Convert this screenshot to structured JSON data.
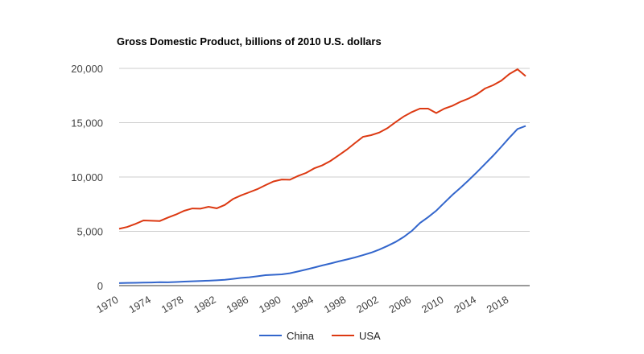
{
  "chart_data": {
    "type": "line",
    "title": "Gross Domestic Product, billions of 2010 U.S. dollars",
    "x": [
      1970,
      1971,
      1972,
      1973,
      1974,
      1975,
      1976,
      1977,
      1978,
      1979,
      1980,
      1981,
      1982,
      1983,
      1984,
      1985,
      1986,
      1987,
      1988,
      1989,
      1990,
      1991,
      1992,
      1993,
      1994,
      1995,
      1996,
      1997,
      1998,
      1999,
      2000,
      2001,
      2002,
      2003,
      2004,
      2005,
      2006,
      2007,
      2008,
      2009,
      2010,
      2011,
      2012,
      2013,
      2014,
      2015,
      2016,
      2017,
      2018,
      2019,
      2020
    ],
    "series": [
      {
        "name": "China",
        "color": "#3366cc",
        "values": [
          230,
          250,
          260,
          280,
          290,
          310,
          300,
          330,
          370,
          400,
          430,
          450,
          490,
          540,
          620,
          710,
          770,
          860,
          960,
          1000,
          1040,
          1140,
          1300,
          1480,
          1670,
          1860,
          2040,
          2230,
          2410,
          2590,
          2810,
          3040,
          3320,
          3650,
          4020,
          4480,
          5040,
          5760,
          6300,
          6900,
          7640,
          8360,
          9020,
          9710,
          10440,
          11200,
          11960,
          12780,
          13620,
          14420,
          14700
        ]
      },
      {
        "name": "USA",
        "color": "#dc3912",
        "values": [
          5230,
          5400,
          5680,
          6000,
          5970,
          5950,
          6270,
          6550,
          6890,
          7100,
          7080,
          7260,
          7120,
          7430,
          7970,
          8310,
          8590,
          8880,
          9250,
          9590,
          9770,
          9750,
          10100,
          10380,
          10800,
          11080,
          11480,
          11990,
          12520,
          13120,
          13700,
          13850,
          14100,
          14500,
          15050,
          15570,
          15980,
          16300,
          16300,
          15890,
          16300,
          16560,
          16930,
          17230,
          17620,
          18150,
          18450,
          18870,
          19480,
          19920,
          19290
        ]
      }
    ],
    "xlim": [
      1970,
      2020
    ],
    "xticks": [
      1970,
      1974,
      1978,
      1982,
      1986,
      1990,
      1994,
      1998,
      2002,
      2006,
      2010,
      2014,
      2018
    ],
    "ylim": [
      0,
      20000
    ],
    "yticks": [
      0,
      {
        "value": 5000,
        "label": "5,000"
      },
      {
        "value": 10000,
        "label": "10,000"
      },
      {
        "value": 15000,
        "label": "15,000"
      },
      {
        "value": 20000,
        "label": "20,000"
      }
    ],
    "grid": true,
    "legend": "bottom"
  }
}
